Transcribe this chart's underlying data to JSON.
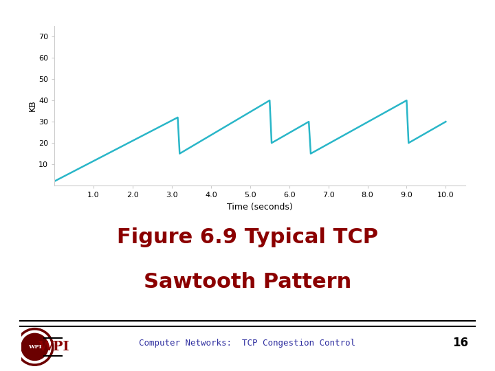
{
  "line_color": "#29b6c8",
  "line_width": 1.8,
  "background_color": "#ffffff",
  "plot_bg_color": "#ffffff",
  "xlabel": "Time (seconds)",
  "ylabel": "KB",
  "xlim": [
    0,
    10.5
  ],
  "ylim": [
    0,
    75
  ],
  "yticks": [
    10,
    20,
    30,
    40,
    50,
    60,
    70
  ],
  "xticks": [
    1.0,
    2.0,
    3.0,
    4.0,
    5.0,
    6.0,
    7.0,
    8.0,
    9.0,
    10.0
  ],
  "x_data": [
    0,
    3.15,
    3.2,
    5.5,
    5.55,
    6.5,
    6.55,
    9.0,
    9.05,
    10.0
  ],
  "y_data": [
    2,
    32,
    15,
    40,
    20,
    30,
    15,
    40,
    20,
    30
  ],
  "title_line1": "Figure 6.9 Typical TCP",
  "title_line2": "Sawtooth Pattern",
  "title_color": "#8b0000",
  "title_fontsize": 22,
  "footer_text": "Computer Networks:  TCP Congestion Control",
  "footer_color": "#3030a0",
  "footer_fontsize": 9,
  "page_number": "16",
  "page_number_color": "#000000",
  "page_number_fontsize": 12,
  "tick_fontsize": 8,
  "axis_label_fontsize": 9
}
